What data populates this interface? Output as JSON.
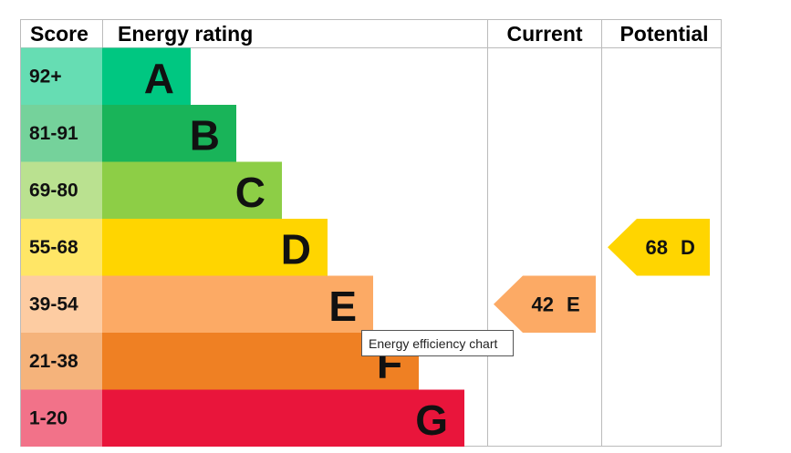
{
  "chart_data": {
    "type": "epc",
    "headers": [
      "Score",
      "Energy rating",
      "Current",
      "Potential"
    ],
    "bands": [
      {
        "score": "92+",
        "letter": "A",
        "color": "#00c781"
      },
      {
        "score": "81-91",
        "letter": "B",
        "color": "#19b459"
      },
      {
        "score": "69-80",
        "letter": "C",
        "color": "#8dce46"
      },
      {
        "score": "55-68",
        "letter": "D",
        "color": "#ffd500"
      },
      {
        "score": "39-54",
        "letter": "E",
        "color": "#fcaa65"
      },
      {
        "score": "21-38",
        "letter": "F",
        "color": "#ef8023"
      },
      {
        "score": "1-20",
        "letter": "G",
        "color": "#e9153b"
      }
    ],
    "current": {
      "value": 42,
      "letter": "E"
    },
    "potential": {
      "value": 68,
      "letter": "D"
    },
    "tooltip": "Energy efficiency chart"
  }
}
